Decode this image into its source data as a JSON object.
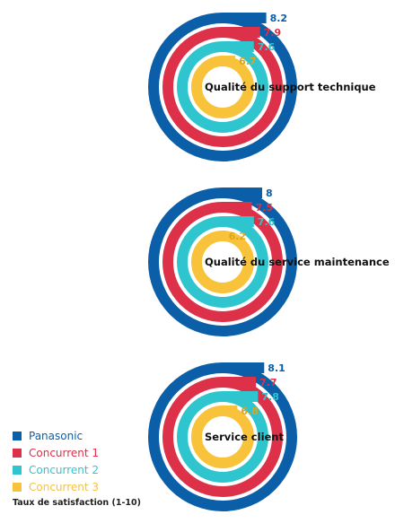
{
  "chart_data": [
    {
      "type": "radial-bar",
      "title": "Qualité du support technique",
      "categories": [
        "Panasonic",
        "Concurrent 1",
        "Concurrent 2",
        "Concurrent 3"
      ],
      "values": [
        8.2,
        7.9,
        7.6,
        6.7
      ],
      "value_labels": [
        "8.2",
        "7.9",
        "7.6",
        "6.7"
      ],
      "ylim": [
        0,
        10
      ]
    },
    {
      "type": "radial-bar",
      "title": "Qualité du service maintenance",
      "categories": [
        "Panasonic",
        "Concurrent 1",
        "Concurrent 2",
        "Concurrent 3"
      ],
      "values": [
        8,
        7.5,
        7.6,
        6.2
      ],
      "value_labels": [
        "8",
        "7.5",
        "7.6",
        "6.2"
      ],
      "ylim": [
        0,
        10
      ]
    },
    {
      "type": "radial-bar",
      "title": "Service client",
      "categories": [
        "Panasonic",
        "Concurrent 1",
        "Concurrent 2",
        "Concurrent 3"
      ],
      "values": [
        8.1,
        7.7,
        7.8,
        6.8
      ],
      "value_labels": [
        "8.1",
        "7.7",
        "7.8",
        "6.8"
      ],
      "ylim": [
        0,
        10
      ]
    }
  ],
  "legend": {
    "items": [
      {
        "label": "Panasonic",
        "color": "#0b5ea8"
      },
      {
        "label": "Concurrent 1",
        "color": "#dd3149"
      },
      {
        "label": "Concurrent 2",
        "color": "#2ec5cf"
      },
      {
        "label": "Concurrent 3",
        "color": "#f8c23a"
      }
    ],
    "note": "Taux de satisfaction (1-10)"
  }
}
